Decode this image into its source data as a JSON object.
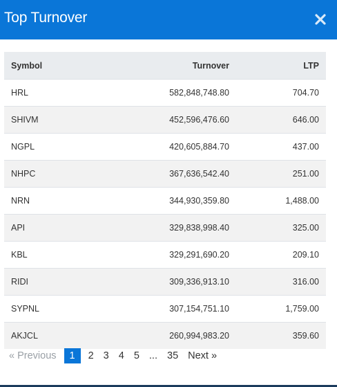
{
  "modal": {
    "title": "Top Turnover",
    "close_icon": "close-icon"
  },
  "colors": {
    "header_bg": "#0a76d8",
    "active_page_bg": "#0a76d8"
  },
  "table": {
    "headers": {
      "symbol": "Symbol",
      "turnover": "Turnover",
      "ltp": "LTP"
    },
    "rows": [
      {
        "symbol": "HRL",
        "turnover": "582,848,748.80",
        "ltp": "704.70"
      },
      {
        "symbol": "SHIVM",
        "turnover": "452,596,476.60",
        "ltp": "646.00"
      },
      {
        "symbol": "NGPL",
        "turnover": "420,605,884.70",
        "ltp": "437.00"
      },
      {
        "symbol": "NHPC",
        "turnover": "367,636,542.40",
        "ltp": "251.00"
      },
      {
        "symbol": "NRN",
        "turnover": "344,930,359.80",
        "ltp": "1,488.00"
      },
      {
        "symbol": "API",
        "turnover": "329,838,998.40",
        "ltp": "325.00"
      },
      {
        "symbol": "KBL",
        "turnover": "329,291,690.20",
        "ltp": "209.10"
      },
      {
        "symbol": "RIDI",
        "turnover": "309,336,913.10",
        "ltp": "316.00"
      },
      {
        "symbol": "SYPNL",
        "turnover": "307,154,751.10",
        "ltp": "1,759.00"
      },
      {
        "symbol": "AKJCL",
        "turnover": "260,994,983.20",
        "ltp": "359.60"
      }
    ]
  },
  "pagination": {
    "previous": "« Previous",
    "pages": [
      "1",
      "2",
      "3",
      "4",
      "5"
    ],
    "active_page": "1",
    "ellipsis": "...",
    "last_page": "35",
    "next": "Next »"
  }
}
